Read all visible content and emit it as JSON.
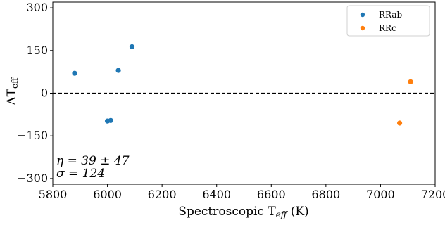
{
  "chart_data": {
    "type": "scatter",
    "xlabel": "Spectroscopic T",
    "xlabel_sub": "eff",
    "xlabel_unit": " (K)",
    "ylabel": "ΔT",
    "ylabel_sub": "eff",
    "xlim": [
      5800,
      7200
    ],
    "ylim": [
      -320,
      320
    ],
    "xticks": [
      5800,
      6000,
      6200,
      6400,
      6600,
      6800,
      7000,
      7200
    ],
    "yticks": [
      -300,
      -150,
      0,
      150,
      300
    ],
    "ytick_labels": [
      "−300",
      "−150",
      "0",
      "150",
      "300"
    ],
    "zero_line": {
      "y": 0,
      "style": "dashed"
    },
    "legend": {
      "position": "top-right"
    },
    "series": [
      {
        "name": "RRab",
        "color": "#1f77b4",
        "points": [
          {
            "x": 5880,
            "y": 70
          },
          {
            "x": 6000,
            "y": -98
          },
          {
            "x": 6012,
            "y": -96
          },
          {
            "x": 6040,
            "y": 80
          },
          {
            "x": 6090,
            "y": 163
          }
        ]
      },
      {
        "name": "RRc",
        "color": "#ff7f0e",
        "points": [
          {
            "x": 7070,
            "y": -105
          },
          {
            "x": 7110,
            "y": 40
          }
        ]
      }
    ],
    "annotations": [
      "η = 39 ± 47",
      "σ = 124"
    ]
  }
}
